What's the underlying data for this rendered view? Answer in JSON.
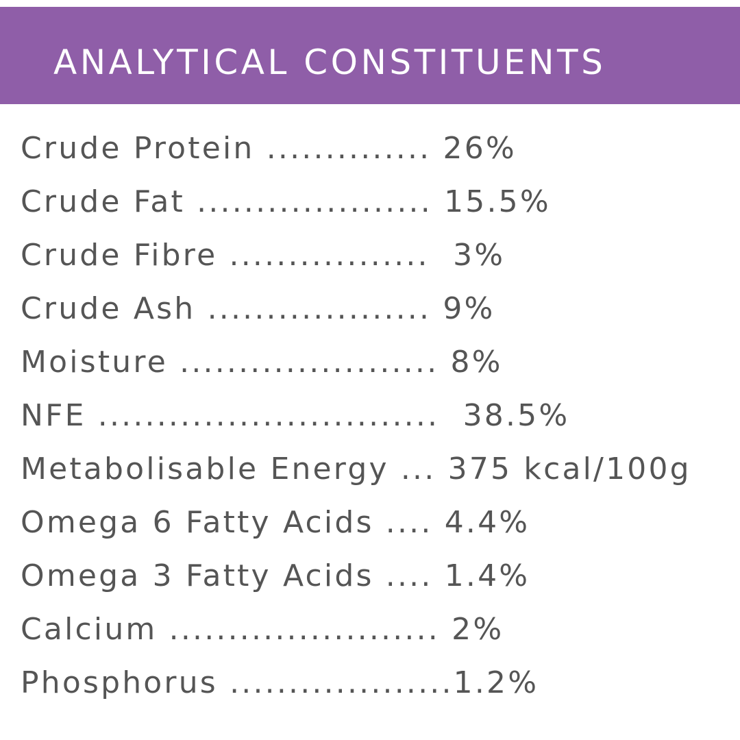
{
  "header": {
    "title": "ANALYTICAL CONSTITUENTS",
    "background_color": "#8f5ea8"
  },
  "constituents": [
    {
      "name": "Crude Protein",
      "leader": " ..............",
      "value": " 26%"
    },
    {
      "name": "Crude Fat",
      "leader": " ....................",
      "value": " 15.5%"
    },
    {
      "name": "Crude Fibre",
      "leader": " .................",
      "value": "  3%"
    },
    {
      "name": "Crude Ash",
      "leader": " ...................",
      "value": " 9%"
    },
    {
      "name": "Moisture",
      "leader": " ......................",
      "value": " 8%"
    },
    {
      "name": "NFE",
      "leader": " .............................",
      "value": "  38.5%"
    },
    {
      "name": "Metabolisable Energy",
      "leader": " ...",
      "value": " 375 kcal/100g"
    },
    {
      "name": "Omega 6 Fatty Acids",
      "leader": " ....",
      "value": " 4.4%"
    },
    {
      "name": "Omega 3 Fatty Acids",
      "leader": " ....",
      "value": " 1.4%"
    },
    {
      "name": "Calcium",
      "leader": " .......................",
      "value": " 2%"
    },
    {
      "name": "Phosphorus",
      "leader": " ...................",
      "value": "1.2%"
    }
  ],
  "text_color": "#555555"
}
